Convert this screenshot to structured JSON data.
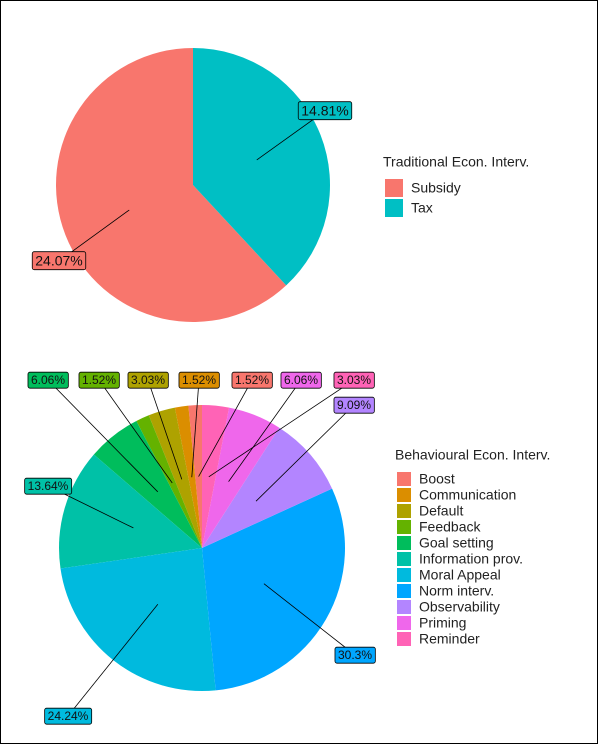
{
  "chart_data": [
    {
      "type": "pie",
      "legend_title": "Traditional Econ. Interv.",
      "categories": [
        "Subsidy",
        "Tax"
      ],
      "values": [
        24.07,
        14.81
      ],
      "value_labels": [
        "24.07%",
        "14.81%"
      ],
      "colors": [
        "#F8766D",
        "#00BFC4"
      ]
    },
    {
      "type": "pie",
      "legend_title": "Behavioural Econ. Interv.",
      "categories": [
        "Boost",
        "Communication",
        "Default",
        "Feedback",
        "Goal setting",
        "Information prov.",
        "Moral Appeal",
        "Norm interv.",
        "Observability",
        "Priming",
        "Reminder"
      ],
      "values": [
        1.52,
        1.52,
        3.03,
        1.52,
        6.06,
        13.64,
        24.24,
        30.3,
        9.09,
        6.06,
        3.03
      ],
      "value_labels": [
        "1.52%",
        "1.52%",
        "3.03%",
        "1.52%",
        "6.06%",
        "13.64%",
        "24.24%",
        "30.3%",
        "9.09%",
        "6.06%",
        "3.03%"
      ],
      "colors": [
        "#F8766D",
        "#DB8E00",
        "#AEA200",
        "#64B200",
        "#00BD5C",
        "#00C1A7",
        "#00BADE",
        "#00A6FF",
        "#B385FF",
        "#EF67EB",
        "#FF63B6"
      ]
    }
  ]
}
